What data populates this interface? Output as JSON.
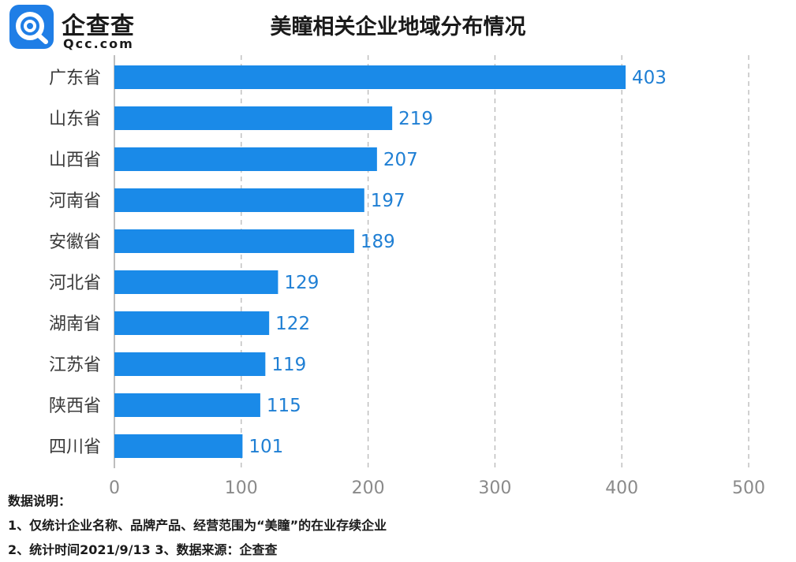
{
  "logo": {
    "name": "企查查",
    "domain": "Qcc.com",
    "icon": "qcc-logo-icon"
  },
  "title": "美瞳相关企业地域分布情况",
  "chart_data": {
    "type": "bar",
    "orientation": "horizontal",
    "title": "美瞳相关企业地域分布情况",
    "categories": [
      "广东省",
      "山东省",
      "山西省",
      "河南省",
      "安徽省",
      "河北省",
      "湖南省",
      "江苏省",
      "陕西省",
      "四川省"
    ],
    "values": [
      403,
      219,
      207,
      197,
      189,
      129,
      122,
      119,
      115,
      101
    ],
    "xticks": [
      "0",
      "100",
      "200",
      "300",
      "400",
      "500"
    ],
    "xlim": [
      0,
      500
    ],
    "bar_color": "#1a8ae8",
    "label_color": "#1f7fd4",
    "grid": "dashed vertical",
    "xlabel": "",
    "ylabel": ""
  },
  "notes": {
    "heading": "数据说明：",
    "line1": "1、仅统计企业名称、品牌产品、经营范围为“美瞳”的在业存续企业",
    "line2": "2、统计时间2021/9/13   3、数据来源：企查查"
  }
}
